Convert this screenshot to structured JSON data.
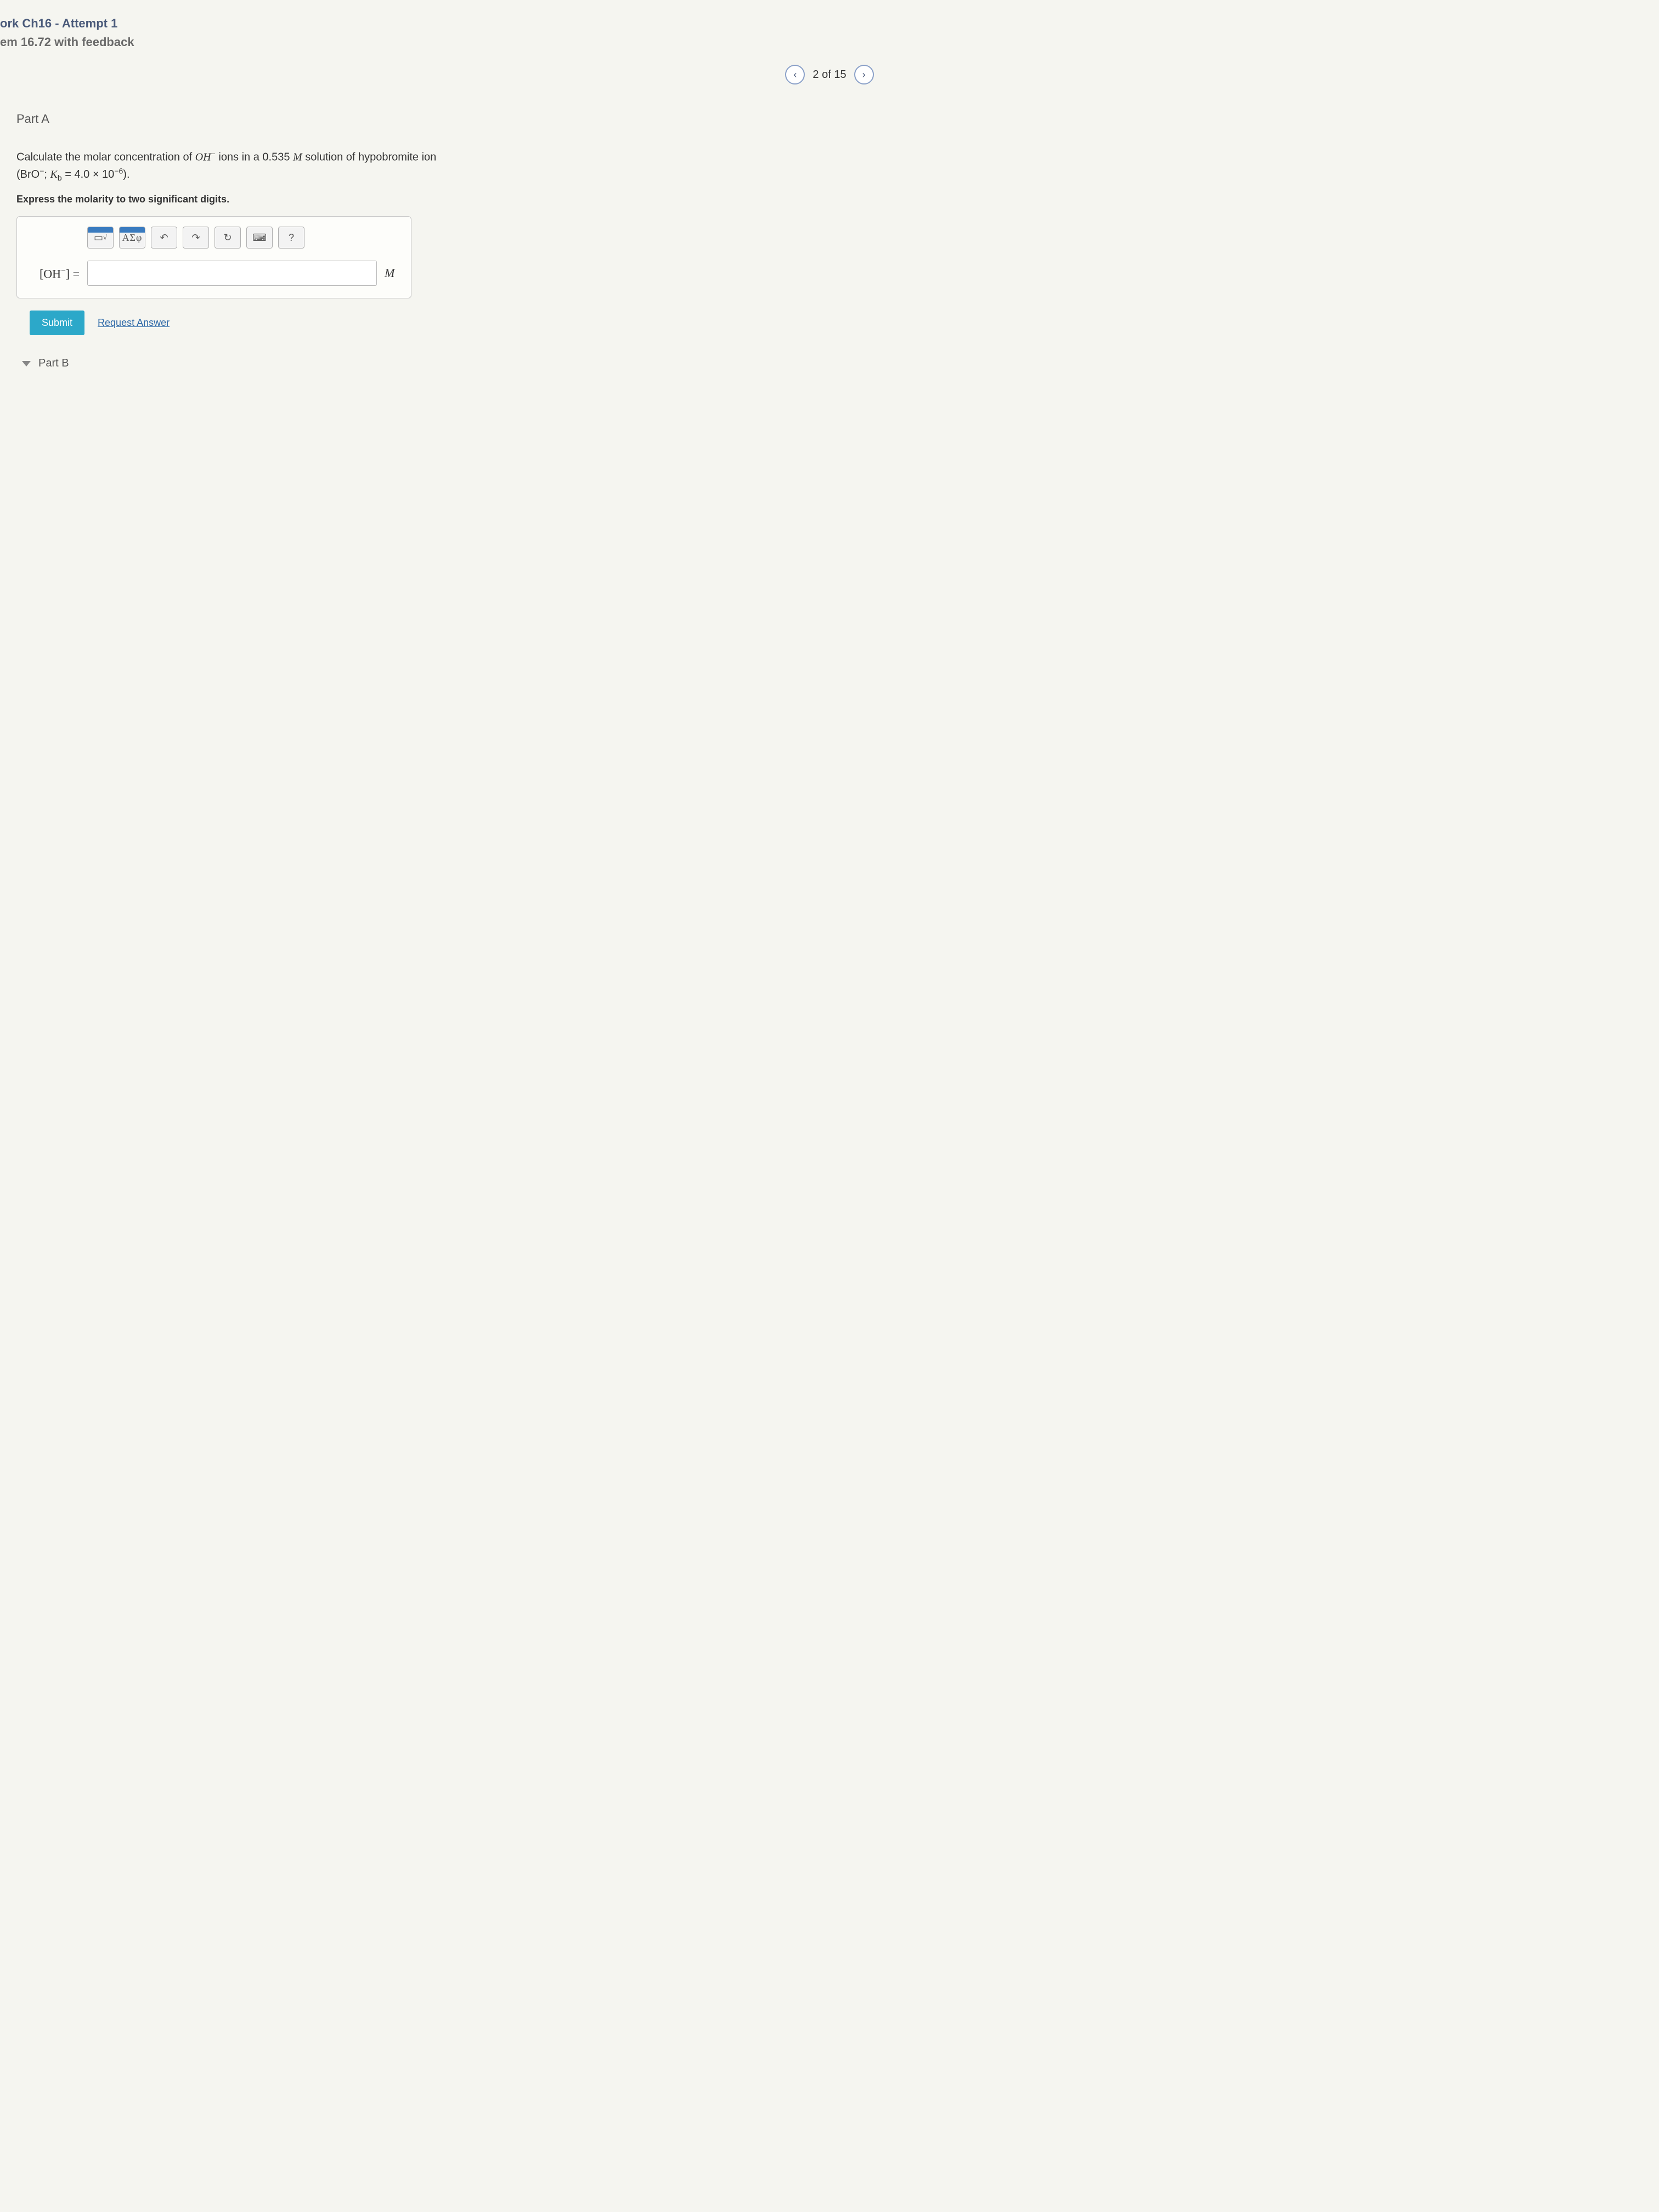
{
  "header": {
    "line1": "ork Ch16 - Attempt 1",
    "line2": "em 16.72 with feedback"
  },
  "pager": {
    "prev_icon": "‹",
    "text": "2 of 15",
    "next_icon": "›"
  },
  "part": {
    "label": "Part A",
    "question_prefix": "Calculate the molar concentration of ",
    "question_species": "OH",
    "question_species_charge": "−",
    "question_mid": " ions in a 0.535 ",
    "question_M": "M",
    "question_suffix": " solution of hypobromite ion",
    "kb_open": "(BrO",
    "kb_charge": "−",
    "kb_sep": "; ",
    "kb_K": "K",
    "kb_b": "b",
    "kb_eq": " = 4.0 × 10",
    "kb_exp": "−6",
    "kb_close": ").",
    "instruction": "Express the molarity to two significant digits."
  },
  "toolbar": {
    "template": "▭",
    "sqrt": "√",
    "greek": "ΑΣφ",
    "undo": "↶",
    "redo": "↷",
    "reset": "↻",
    "keyboard": "⌨",
    "help": "?"
  },
  "answer": {
    "lhs_open": "[OH",
    "lhs_charge": "−",
    "lhs_close": "] =",
    "value": "",
    "unit": "M"
  },
  "actions": {
    "submit": "Submit",
    "request": "Request Answer"
  },
  "next": {
    "label": "Part B"
  },
  "colors": {
    "header1": "#4a5a7a",
    "header2": "#6a6a6a",
    "submit_bg": "#2ca8c9",
    "link": "#2f6aa8",
    "pager_border": "#8aa0c8",
    "box_border": "#c8c8c8",
    "background": "#f5f5f0"
  }
}
